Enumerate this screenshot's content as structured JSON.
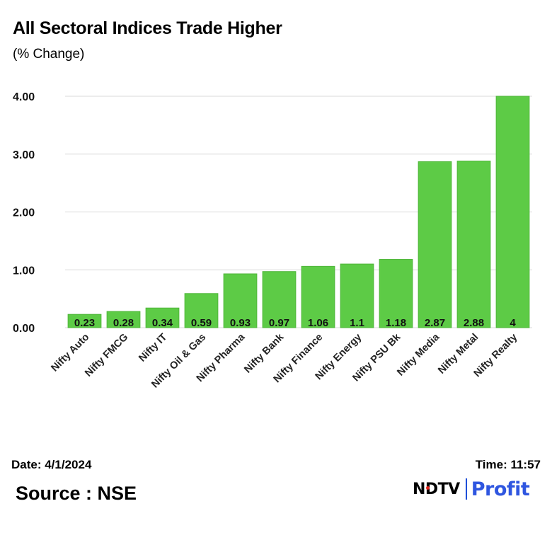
{
  "header": {
    "title": "All Sectoral Indices Trade Higher",
    "subtitle": "(% Change)"
  },
  "footer": {
    "date": "Date: 4/1/2024",
    "time": "Time: 11:57",
    "source": "Source : NSE",
    "logo_left": "NDTV",
    "logo_right": "Profit"
  },
  "colors": {
    "bar": "#5dcb46",
    "bar_edge": "#4fb63a",
    "grid": "#d9d9d9",
    "logo_accent": "#2f56e0"
  },
  "chart_data": {
    "type": "bar",
    "categories": [
      "Nifty Auto",
      "Nifty FMCG",
      "Nifty IT",
      "Nifty Oil & Gas",
      "Nifty Pharma",
      "Nifty Bank",
      "Nifty Finance",
      "Nifty Energy",
      "Nifty PSU Bk",
      "Nifty Media",
      "Nifty Metal",
      "Nifty Realty"
    ],
    "values": [
      0.23,
      0.28,
      0.34,
      0.59,
      0.93,
      0.97,
      1.06,
      1.1,
      1.18,
      2.87,
      2.88,
      4
    ],
    "data_labels": [
      "0.23",
      "0.28",
      "0.34",
      "0.59",
      "0.93",
      "0.97",
      "1.06",
      "1.1",
      "1.18",
      "2.87",
      "2.88",
      "4"
    ],
    "yticks": [
      0,
      1,
      2,
      3,
      4
    ],
    "ytick_labels": [
      "0.00",
      "1.00",
      "2.00",
      "3.00",
      "4.00"
    ],
    "ylim": [
      0,
      4
    ],
    "grid": true,
    "legend": "none"
  }
}
